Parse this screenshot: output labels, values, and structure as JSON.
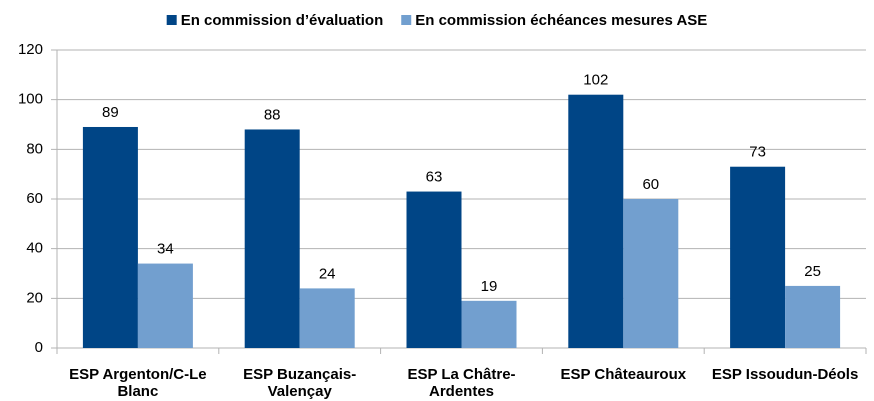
{
  "chart_data": {
    "type": "bar",
    "categories": [
      "ESP Argenton/C-Le Blanc",
      "ESP Buzançais-Valençay",
      "ESP La Châtre-Ardentes",
      "ESP Châteauroux",
      "ESP Issoudun-Déols"
    ],
    "series": [
      {
        "name": "En commission d’évaluation",
        "color": "#004586",
        "values": [
          89,
          88,
          63,
          102,
          73
        ]
      },
      {
        "name": "En commission échéances mesures ASE",
        "color": "#729fcf",
        "values": [
          34,
          24,
          19,
          60,
          25
        ]
      }
    ],
    "ylim": [
      0,
      120
    ],
    "yticks": [
      0,
      20,
      40,
      60,
      80,
      100,
      120
    ],
    "grid": true,
    "legend": "top"
  }
}
